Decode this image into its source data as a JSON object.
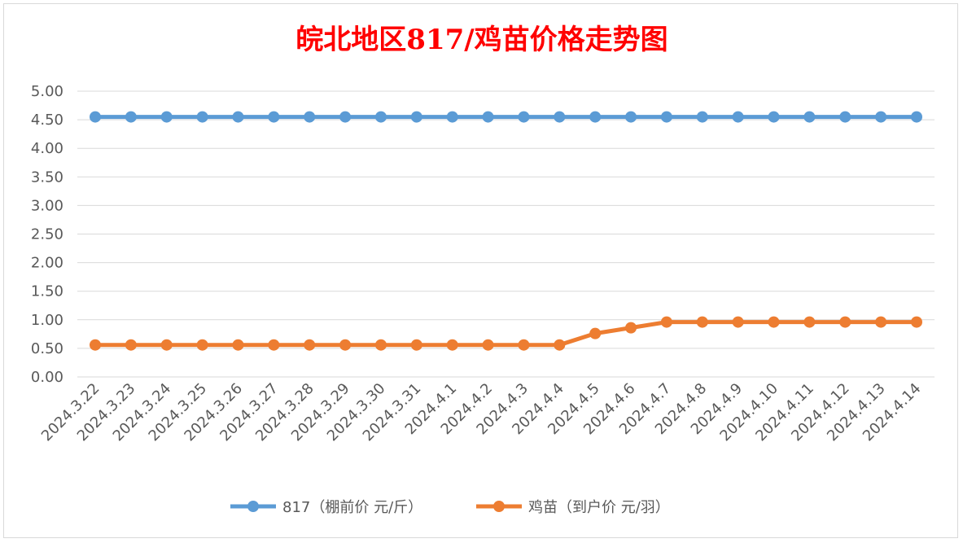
{
  "chart_data": {
    "type": "line",
    "title": "皖北地区817/鸡苗价格走势图",
    "categories": [
      "2024.3.22",
      "2024.3.23",
      "2024.3.24",
      "2024.3.25",
      "2024.3.26",
      "2024.3.27",
      "2024.3.28",
      "2024.3.29",
      "2024.3.30",
      "2024.3.31",
      "2024.4.1",
      "2024.4.2",
      "2024.4.3",
      "2024.4.4",
      "2024.4.5",
      "2024.4.6",
      "2024.4.7",
      "2024.4.8",
      "2024.4.9",
      "2024.4.10",
      "2024.4.11",
      "2024.4.12",
      "2024.4.13",
      "2024.4.14"
    ],
    "series": [
      {
        "name": "817（棚前价 元/斤）",
        "color": "#5b9bd5",
        "values": [
          4.55,
          4.55,
          4.55,
          4.55,
          4.55,
          4.55,
          4.55,
          4.55,
          4.55,
          4.55,
          4.55,
          4.55,
          4.55,
          4.55,
          4.55,
          4.55,
          4.55,
          4.55,
          4.55,
          4.55,
          4.55,
          4.55,
          4.55,
          4.55
        ]
      },
      {
        "name": "鸡苗（到户价 元/羽）",
        "color": "#ed7d31",
        "values": [
          0.56,
          0.56,
          0.56,
          0.56,
          0.56,
          0.56,
          0.56,
          0.56,
          0.56,
          0.56,
          0.56,
          0.56,
          0.56,
          0.56,
          0.76,
          0.86,
          0.96,
          0.96,
          0.96,
          0.96,
          0.96,
          0.96,
          0.96,
          0.96
        ]
      }
    ],
    "ylim": [
      0,
      5
    ],
    "yticks": [
      "0.00",
      "0.50",
      "1.00",
      "1.50",
      "2.00",
      "2.50",
      "3.00",
      "3.50",
      "4.00",
      "4.50",
      "5.00"
    ],
    "grid": true,
    "legend": "bottom"
  }
}
